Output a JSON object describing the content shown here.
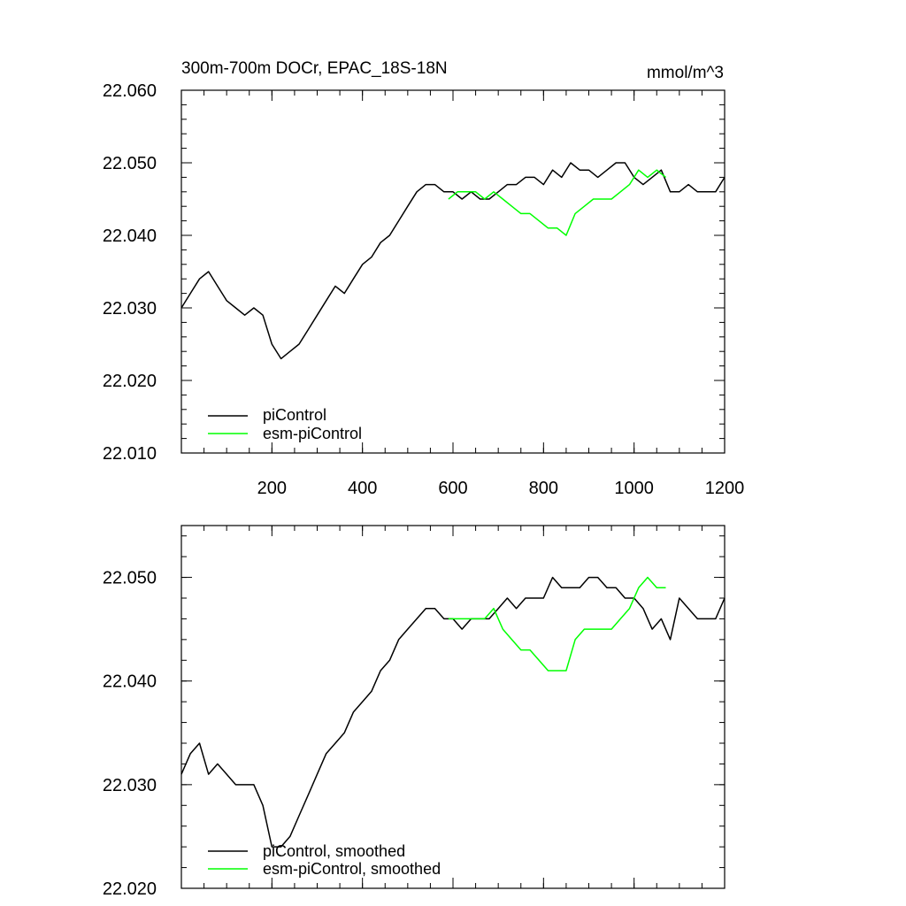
{
  "chart_data": [
    {
      "type": "line",
      "title": "300m-700m DOCr, EPAC_18S-18N",
      "units": "mmol/m^3",
      "xlim": [
        0,
        1200
      ],
      "ylim": [
        22.01,
        22.06
      ],
      "x_ticks": [
        200,
        400,
        600,
        800,
        1000,
        1200
      ],
      "x_tick_labels": [
        "200",
        "400",
        "600",
        "800",
        "1000",
        "1200"
      ],
      "y_ticks": [
        22.01,
        22.02,
        22.03,
        22.04,
        22.05,
        22.06
      ],
      "y_tick_labels": [
        "22.010",
        "22.020",
        "22.030",
        "22.040",
        "22.050",
        "22.060"
      ],
      "legend_position": "bottom-left",
      "series": [
        {
          "name": "piControl",
          "color": "#000000",
          "x": [
            0,
            20,
            40,
            60,
            80,
            100,
            120,
            140,
            160,
            180,
            200,
            220,
            240,
            260,
            280,
            300,
            320,
            340,
            360,
            380,
            400,
            420,
            440,
            460,
            480,
            500,
            520,
            540,
            560,
            580,
            600,
            620,
            640,
            660,
            680,
            700,
            720,
            740,
            760,
            780,
            800,
            820,
            840,
            860,
            880,
            900,
            920,
            940,
            960,
            980,
            1000,
            1020,
            1040,
            1060,
            1080,
            1100,
            1120,
            1140,
            1160,
            1180,
            1200
          ],
          "y": [
            22.03,
            22.032,
            22.034,
            22.035,
            22.033,
            22.031,
            22.03,
            22.029,
            22.03,
            22.029,
            22.025,
            22.023,
            22.024,
            22.025,
            22.027,
            22.029,
            22.031,
            22.033,
            22.032,
            22.034,
            22.036,
            22.037,
            22.039,
            22.04,
            22.042,
            22.044,
            22.046,
            22.047,
            22.047,
            22.046,
            22.046,
            22.045,
            22.046,
            22.045,
            22.045,
            22.046,
            22.047,
            22.047,
            22.048,
            22.048,
            22.047,
            22.049,
            22.048,
            22.05,
            22.049,
            22.049,
            22.048,
            22.049,
            22.05,
            22.05,
            22.048,
            22.047,
            22.048,
            22.049,
            22.046,
            22.046,
            22.047,
            22.046,
            22.046,
            22.046,
            22.048
          ]
        },
        {
          "name": "esm-piControl",
          "color": "#00ff00",
          "x": [
            590,
            610,
            630,
            650,
            670,
            690,
            710,
            730,
            750,
            770,
            790,
            810,
            830,
            850,
            870,
            890,
            910,
            930,
            950,
            970,
            990,
            1010,
            1030,
            1050,
            1070
          ],
          "y": [
            22.045,
            22.046,
            22.046,
            22.046,
            22.045,
            22.046,
            22.045,
            22.044,
            22.043,
            22.043,
            22.042,
            22.041,
            22.041,
            22.04,
            22.043,
            22.044,
            22.045,
            22.045,
            22.045,
            22.046,
            22.047,
            22.049,
            22.048,
            22.049,
            22.048
          ]
        }
      ]
    },
    {
      "type": "line",
      "title": "",
      "xlim": [
        0,
        1200
      ],
      "ylim": [
        22.02,
        22.055
      ],
      "x_ticks": [
        200,
        400,
        600,
        800,
        1000,
        1200
      ],
      "y_ticks": [
        22.02,
        22.03,
        22.04,
        22.05
      ],
      "y_tick_labels": [
        "22.020",
        "22.030",
        "22.040",
        "22.050"
      ],
      "legend_position": "bottom-left",
      "series": [
        {
          "name": "piControl, smoothed",
          "color": "#000000",
          "x": [
            0,
            20,
            40,
            60,
            80,
            100,
            120,
            140,
            160,
            180,
            200,
            220,
            240,
            260,
            280,
            300,
            320,
            340,
            360,
            380,
            400,
            420,
            440,
            460,
            480,
            500,
            520,
            540,
            560,
            580,
            600,
            620,
            640,
            660,
            680,
            700,
            720,
            740,
            760,
            780,
            800,
            820,
            840,
            860,
            880,
            900,
            920,
            940,
            960,
            980,
            1000,
            1020,
            1040,
            1060,
            1080,
            1100,
            1120,
            1140,
            1160,
            1180,
            1200
          ],
          "y": [
            22.031,
            22.033,
            22.034,
            22.031,
            22.032,
            22.031,
            22.03,
            22.03,
            22.03,
            22.028,
            22.024,
            22.024,
            22.025,
            22.027,
            22.029,
            22.031,
            22.033,
            22.034,
            22.035,
            22.037,
            22.038,
            22.039,
            22.041,
            22.042,
            22.044,
            22.045,
            22.046,
            22.047,
            22.047,
            22.046,
            22.046,
            22.045,
            22.046,
            22.046,
            22.046,
            22.047,
            22.048,
            22.047,
            22.048,
            22.048,
            22.048,
            22.05,
            22.049,
            22.049,
            22.049,
            22.05,
            22.05,
            22.049,
            22.049,
            22.048,
            22.048,
            22.047,
            22.045,
            22.046,
            22.044,
            22.048,
            22.047,
            22.046,
            22.046,
            22.046,
            22.048
          ]
        },
        {
          "name": "esm-piControl, smoothed",
          "color": "#00ff00",
          "x": [
            590,
            610,
            630,
            650,
            670,
            690,
            710,
            730,
            750,
            770,
            790,
            810,
            830,
            850,
            870,
            890,
            910,
            930,
            950,
            970,
            990,
            1010,
            1030,
            1050,
            1070
          ],
          "y": [
            22.046,
            22.046,
            22.046,
            22.046,
            22.046,
            22.047,
            22.045,
            22.044,
            22.043,
            22.043,
            22.042,
            22.041,
            22.041,
            22.041,
            22.044,
            22.045,
            22.045,
            22.045,
            22.045,
            22.046,
            22.047,
            22.049,
            22.05,
            22.049,
            22.049
          ]
        }
      ]
    }
  ]
}
